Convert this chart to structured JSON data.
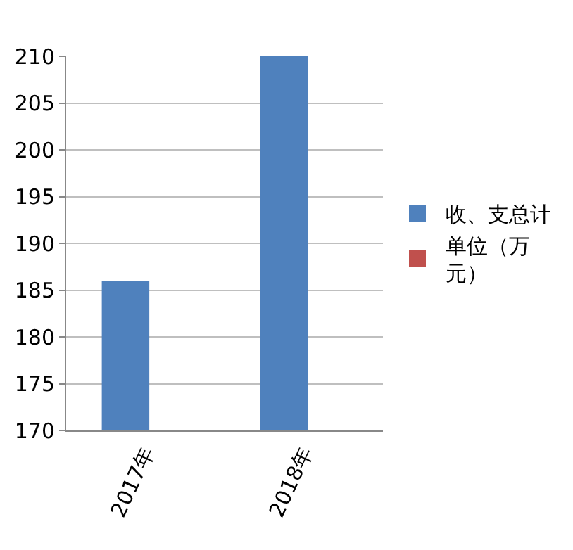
{
  "chart_data": {
    "type": "bar",
    "categories": [
      "2017年",
      "2018年"
    ],
    "series": [
      {
        "name": "收、支总计",
        "color": "#4f81bd",
        "values": [
          186,
          210
        ]
      },
      {
        "name": "单位（万元）",
        "color": "#c0504d",
        "values": [
          null,
          null
        ]
      }
    ],
    "ylim": [
      170,
      210
    ],
    "yticks": [
      170,
      175,
      180,
      185,
      190,
      195,
      200,
      205,
      210
    ],
    "grid": "y",
    "legend": "right"
  }
}
